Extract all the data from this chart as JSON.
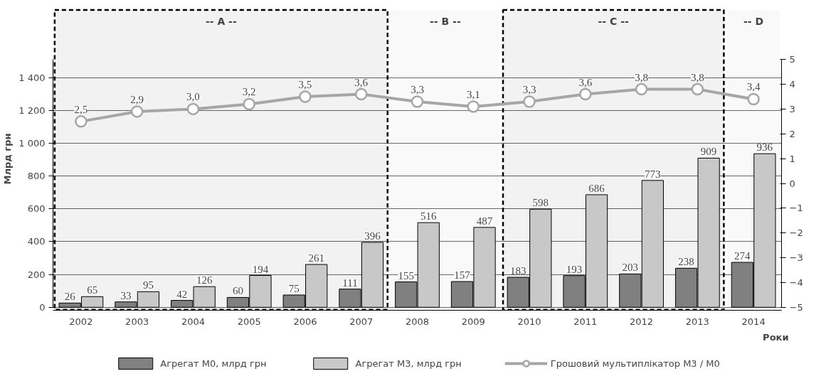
{
  "chart_data": {
    "type": "bar",
    "categories": [
      "2002",
      "2003",
      "2004",
      "2005",
      "2006",
      "2007",
      "2008",
      "2009",
      "2010",
      "2011",
      "2012",
      "2013",
      "2014"
    ],
    "xlabel": "Роки",
    "ylabel": "Млрд грн",
    "series": [
      {
        "name": "Агрегат M0, млрд грн",
        "color": "#808080",
        "values": [
          26,
          33,
          42,
          60,
          75,
          111,
          155,
          157,
          183,
          193,
          203,
          238,
          274
        ],
        "value_labels": [
          "26",
          "33",
          "42",
          "60",
          "75",
          "111",
          "155",
          "157",
          "183",
          "193",
          "203",
          "238",
          "274"
        ]
      },
      {
        "name": "Агрегат M3, млрд грн",
        "color": "#c8c8c8",
        "values": [
          65,
          95,
          126,
          194,
          261,
          396,
          516,
          487,
          598,
          686,
          773,
          909,
          936
        ],
        "value_labels": [
          "65",
          "95",
          "126",
          "194",
          "261",
          "396",
          "516",
          "487",
          "598",
          "686",
          "773",
          "909",
          "936"
        ]
      },
      {
        "name": "Грошовий мультиплікатор M3 / M0",
        "type": "line",
        "axis": "y2",
        "color": "#a6a6a6",
        "marker": "circle",
        "values": [
          2.5,
          2.9,
          3.0,
          3.2,
          3.5,
          3.6,
          3.3,
          3.1,
          3.3,
          3.6,
          3.8,
          3.8,
          3.4
        ],
        "value_labels": [
          "2,5",
          "2,9",
          "3,0",
          "3,2",
          "3,5",
          "3,6",
          "3,3",
          "3,1",
          "3,3",
          "3,6",
          "3,8",
          "3,8",
          "3,4"
        ]
      }
    ],
    "ylim": [
      0,
      1510
    ],
    "yticks": [
      0,
      200,
      400,
      600,
      800,
      {
        "value": 1000,
        "label": "1 000"
      },
      {
        "value": 1200,
        "label": "1 200"
      },
      {
        "value": 1400,
        "label": "1 400"
      }
    ],
    "y2lim": [
      -5,
      5
    ],
    "y2ticks": [
      {
        "value": -5,
        "label": "−5"
      },
      {
        "value": -4,
        "label": "−4"
      },
      {
        "value": -3,
        "label": "−3"
      },
      {
        "value": -2,
        "label": "−2"
      },
      {
        "value": -1,
        "label": "−1"
      },
      0,
      1,
      2,
      3,
      4,
      5
    ],
    "bands": [
      {
        "axis": "x",
        "from": "2002",
        "to": "2007",
        "label": "-- A --",
        "color": "#000000"
      },
      {
        "axis": "x",
        "from": "2008",
        "to": "2009",
        "label": "-- B --",
        "color": null
      },
      {
        "axis": "x",
        "from": "2010",
        "to": "2013",
        "label": "-- C --",
        "color": "#000000"
      },
      {
        "axis": "x",
        "from": "2014",
        "to": "2014",
        "label": "-- D",
        "color": null
      }
    ],
    "grid": "y",
    "legend": "bottom"
  }
}
